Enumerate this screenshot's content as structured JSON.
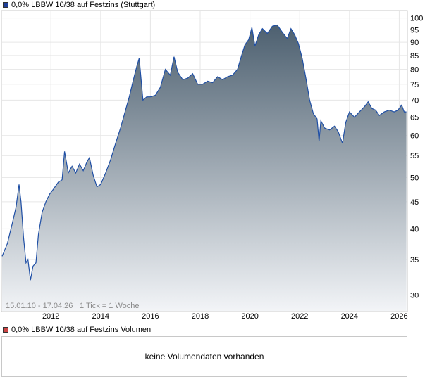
{
  "chart_data": {
    "type": "area",
    "title": "0,0% LBBW 10/38 auf Festzins (Stuttgart)",
    "series": [
      {
        "name": "0,0% LBBW 10/38 auf Festzins (Stuttgart)",
        "points": [
          [
            2010.04,
            35.5
          ],
          [
            2010.25,
            37.5
          ],
          [
            2010.45,
            41.0
          ],
          [
            2010.6,
            44.0
          ],
          [
            2010.72,
            48.5
          ],
          [
            2010.8,
            45.0
          ],
          [
            2010.9,
            38.5
          ],
          [
            2011.0,
            34.5
          ],
          [
            2011.08,
            35.0
          ],
          [
            2011.18,
            32.0
          ],
          [
            2011.28,
            34.0
          ],
          [
            2011.4,
            34.5
          ],
          [
            2011.5,
            39.0
          ],
          [
            2011.65,
            43.0
          ],
          [
            2011.8,
            45.0
          ],
          [
            2011.95,
            46.5
          ],
          [
            2012.1,
            47.5
          ],
          [
            2012.3,
            49.0
          ],
          [
            2012.45,
            49.5
          ],
          [
            2012.55,
            56.0
          ],
          [
            2012.7,
            51.0
          ],
          [
            2012.85,
            52.5
          ],
          [
            2013.0,
            51.0
          ],
          [
            2013.15,
            53.0
          ],
          [
            2013.3,
            51.5
          ],
          [
            2013.45,
            53.5
          ],
          [
            2013.55,
            54.5
          ],
          [
            2013.7,
            50.5
          ],
          [
            2013.85,
            48.0
          ],
          [
            2014.0,
            48.5
          ],
          [
            2014.2,
            51.0
          ],
          [
            2014.4,
            54.0
          ],
          [
            2014.6,
            58.0
          ],
          [
            2014.8,
            62.0
          ],
          [
            2015.0,
            67.0
          ],
          [
            2015.15,
            71.0
          ],
          [
            2015.3,
            76.0
          ],
          [
            2015.45,
            81.0
          ],
          [
            2015.55,
            84.0
          ],
          [
            2015.7,
            70.0
          ],
          [
            2015.85,
            71.0
          ],
          [
            2016.0,
            71.0
          ],
          [
            2016.2,
            71.5
          ],
          [
            2016.4,
            74.0
          ],
          [
            2016.6,
            80.0
          ],
          [
            2016.8,
            78.0
          ],
          [
            2016.95,
            84.5
          ],
          [
            2017.1,
            79.0
          ],
          [
            2017.3,
            76.5
          ],
          [
            2017.5,
            77.0
          ],
          [
            2017.7,
            78.5
          ],
          [
            2017.9,
            75.0
          ],
          [
            2018.1,
            75.0
          ],
          [
            2018.3,
            76.0
          ],
          [
            2018.5,
            75.5
          ],
          [
            2018.7,
            77.5
          ],
          [
            2018.9,
            76.5
          ],
          [
            2019.1,
            77.5
          ],
          [
            2019.3,
            78.0
          ],
          [
            2019.5,
            80.0
          ],
          [
            2019.65,
            84.5
          ],
          [
            2019.8,
            89.0
          ],
          [
            2019.95,
            91.0
          ],
          [
            2020.08,
            96.0
          ],
          [
            2020.2,
            88.5
          ],
          [
            2020.35,
            93.0
          ],
          [
            2020.5,
            95.5
          ],
          [
            2020.7,
            93.5
          ],
          [
            2020.9,
            96.5
          ],
          [
            2021.1,
            97.0
          ],
          [
            2021.3,
            94.0
          ],
          [
            2021.5,
            91.5
          ],
          [
            2021.65,
            95.5
          ],
          [
            2021.8,
            93.0
          ],
          [
            2021.95,
            89.5
          ],
          [
            2022.1,
            84.0
          ],
          [
            2022.25,
            77.0
          ],
          [
            2022.4,
            70.0
          ],
          [
            2022.55,
            66.0
          ],
          [
            2022.7,
            64.5
          ],
          [
            2022.78,
            58.5
          ],
          [
            2022.85,
            64.0
          ],
          [
            2023.0,
            62.0
          ],
          [
            2023.2,
            61.5
          ],
          [
            2023.4,
            62.5
          ],
          [
            2023.55,
            61.0
          ],
          [
            2023.72,
            58.0
          ],
          [
            2023.85,
            63.5
          ],
          [
            2024.0,
            66.5
          ],
          [
            2024.2,
            65.0
          ],
          [
            2024.4,
            66.5
          ],
          [
            2024.6,
            68.0
          ],
          [
            2024.75,
            69.5
          ],
          [
            2024.9,
            67.5
          ],
          [
            2025.05,
            67.0
          ],
          [
            2025.2,
            65.5
          ],
          [
            2025.4,
            66.5
          ],
          [
            2025.6,
            67.0
          ],
          [
            2025.8,
            66.5
          ],
          [
            2025.95,
            67.0
          ],
          [
            2026.1,
            68.5
          ],
          [
            2026.2,
            66.5
          ],
          [
            2026.29,
            66.5
          ]
        ]
      }
    ],
    "x_ticks": [
      2012,
      2014,
      2016,
      2018,
      2020,
      2022,
      2024,
      2026
    ],
    "y_ticks": [
      30,
      35,
      40,
      45,
      50,
      55,
      60,
      65,
      70,
      75,
      80,
      85,
      90,
      95,
      100
    ],
    "ylim": [
      28,
      103
    ],
    "xlim": [
      2010.04,
      2026.3
    ],
    "y_scale": "log",
    "y_axis_position": "right",
    "grid": true,
    "line_color": "#1f4fa5",
    "fill_color_top": "#4d6070",
    "fill_color_bottom": "#f2f4f7",
    "date_range": "15.01.10 - 17.04.26",
    "tick_info": "1 Tick = 1 Woche"
  },
  "volume": {
    "title": "0,0% LBBW 10/38 auf Festzins Volumen",
    "color": "#cc4444",
    "empty_message": "keine Volumendaten vorhanden"
  },
  "legend_color": "#1f3f99"
}
